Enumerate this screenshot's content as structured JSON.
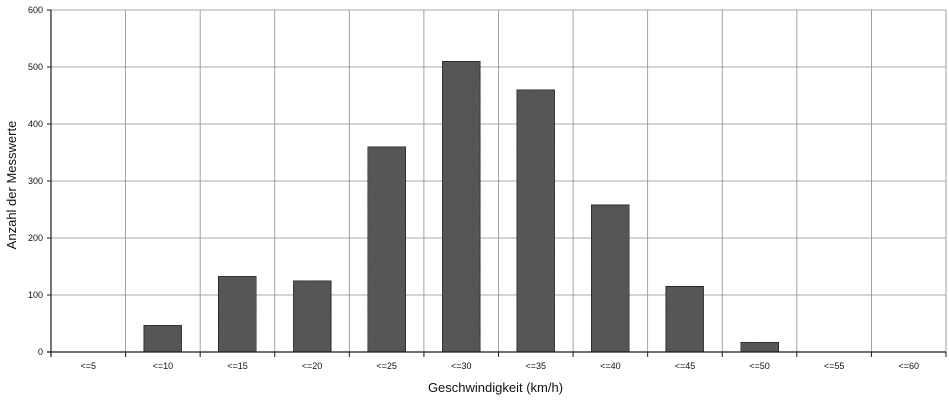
{
  "chart_data": {
    "type": "bar",
    "title": "",
    "xlabel": "Geschwindigkeit (km/h)",
    "ylabel": "Anzahl der Messwerte",
    "categories": [
      "<=5",
      "<=10",
      "<=15",
      "<=20",
      "<=25",
      "<=30",
      "<=35",
      "<=40",
      "<=45",
      "<=50",
      "<=55",
      "<=60"
    ],
    "values": [
      0,
      47,
      133,
      125,
      360,
      510,
      460,
      258,
      115,
      17,
      0,
      0
    ],
    "ylim": [
      0,
      600
    ],
    "yticks": [
      0,
      100,
      200,
      300,
      400,
      500,
      600
    ],
    "grid": true,
    "legend": "none",
    "colors": {
      "bar_fill": "#5a5a5a",
      "bar_edge": "#2a2a2a",
      "grid": "#8c8c8c",
      "axis": "#1a1a1a"
    }
  }
}
